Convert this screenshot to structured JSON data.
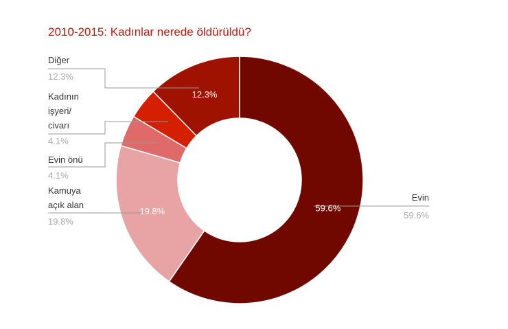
{
  "chart_data": {
    "type": "donut",
    "title": "2010-2015: Kadınlar nerede öldürüldü?",
    "categories": [
      "Evin",
      "Kamuya\naçık alan",
      "Evin önü",
      "Kadının\nişyeri/\ncivarı",
      "Diğer"
    ],
    "values": [
      59.6,
      19.8,
      4.1,
      4.1,
      12.3
    ],
    "value_labels": [
      "59.6%",
      "19.8%",
      "4.1%",
      "4.1%",
      "12.3%"
    ],
    "colors": [
      "#700800",
      "#e8a4a4",
      "#e06a6a",
      "#d42000",
      "#a01200"
    ]
  }
}
